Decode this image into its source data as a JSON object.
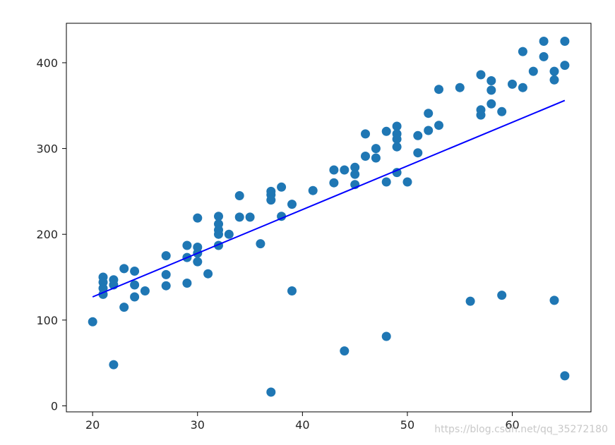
{
  "chart_data": {
    "type": "scatter",
    "title": "",
    "xlabel": "",
    "ylabel": "",
    "xlim": [
      17.5,
      67.5
    ],
    "ylim": [
      -7,
      446
    ],
    "x_ticks": [
      20,
      30,
      40,
      50,
      60
    ],
    "y_ticks": [
      0,
      100,
      200,
      300,
      400
    ],
    "grid": false,
    "legend": "none",
    "point_color": "#1f77b4",
    "line_color": "#0000ff",
    "points": [
      [
        20,
        98
      ],
      [
        21,
        150
      ],
      [
        21,
        144
      ],
      [
        21,
        137
      ],
      [
        21,
        130
      ],
      [
        22,
        147
      ],
      [
        22,
        141
      ],
      [
        22,
        48
      ],
      [
        23,
        160
      ],
      [
        23,
        115
      ],
      [
        24,
        157
      ],
      [
        24,
        141
      ],
      [
        24,
        127
      ],
      [
        25,
        134
      ],
      [
        27,
        175
      ],
      [
        27,
        153
      ],
      [
        27,
        140
      ],
      [
        29,
        187
      ],
      [
        29,
        173
      ],
      [
        29,
        143
      ],
      [
        30,
        219
      ],
      [
        30,
        185
      ],
      [
        30,
        178
      ],
      [
        30,
        168
      ],
      [
        31,
        154
      ],
      [
        32,
        221
      ],
      [
        32,
        212
      ],
      [
        32,
        205
      ],
      [
        32,
        200
      ],
      [
        32,
        187
      ],
      [
        33,
        200
      ],
      [
        34,
        245
      ],
      [
        34,
        220
      ],
      [
        35,
        220
      ],
      [
        36,
        189
      ],
      [
        37,
        250
      ],
      [
        37,
        246
      ],
      [
        37,
        240
      ],
      [
        37,
        16
      ],
      [
        38,
        255
      ],
      [
        38,
        221
      ],
      [
        39,
        235
      ],
      [
        39,
        134
      ],
      [
        41,
        251
      ],
      [
        43,
        275
      ],
      [
        43,
        260
      ],
      [
        44,
        275
      ],
      [
        44,
        64
      ],
      [
        45,
        278
      ],
      [
        45,
        270
      ],
      [
        45,
        258
      ],
      [
        46,
        317
      ],
      [
        46,
        291
      ],
      [
        47,
        300
      ],
      [
        47,
        289
      ],
      [
        48,
        320
      ],
      [
        48,
        261
      ],
      [
        48,
        81
      ],
      [
        49,
        326
      ],
      [
        49,
        317
      ],
      [
        49,
        311
      ],
      [
        49,
        302
      ],
      [
        49,
        272
      ],
      [
        50,
        261
      ],
      [
        51,
        315
      ],
      [
        51,
        295
      ],
      [
        52,
        341
      ],
      [
        52,
        321
      ],
      [
        53,
        369
      ],
      [
        53,
        327
      ],
      [
        55,
        371
      ],
      [
        56,
        122
      ],
      [
        57,
        386
      ],
      [
        57,
        345
      ],
      [
        57,
        339
      ],
      [
        58,
        379
      ],
      [
        58,
        368
      ],
      [
        58,
        352
      ],
      [
        59,
        343
      ],
      [
        59,
        129
      ],
      [
        60,
        375
      ],
      [
        61,
        413
      ],
      [
        61,
        371
      ],
      [
        62,
        390
      ],
      [
        63,
        425
      ],
      [
        63,
        407
      ],
      [
        64,
        390
      ],
      [
        64,
        380
      ],
      [
        64,
        123
      ],
      [
        65,
        425
      ],
      [
        65,
        397
      ],
      [
        65,
        35
      ]
    ],
    "regression_line": {
      "x": [
        20,
        65
      ],
      "y": [
        127,
        356
      ]
    }
  },
  "watermark": "https://blog.csdn.net/qq_35272180"
}
